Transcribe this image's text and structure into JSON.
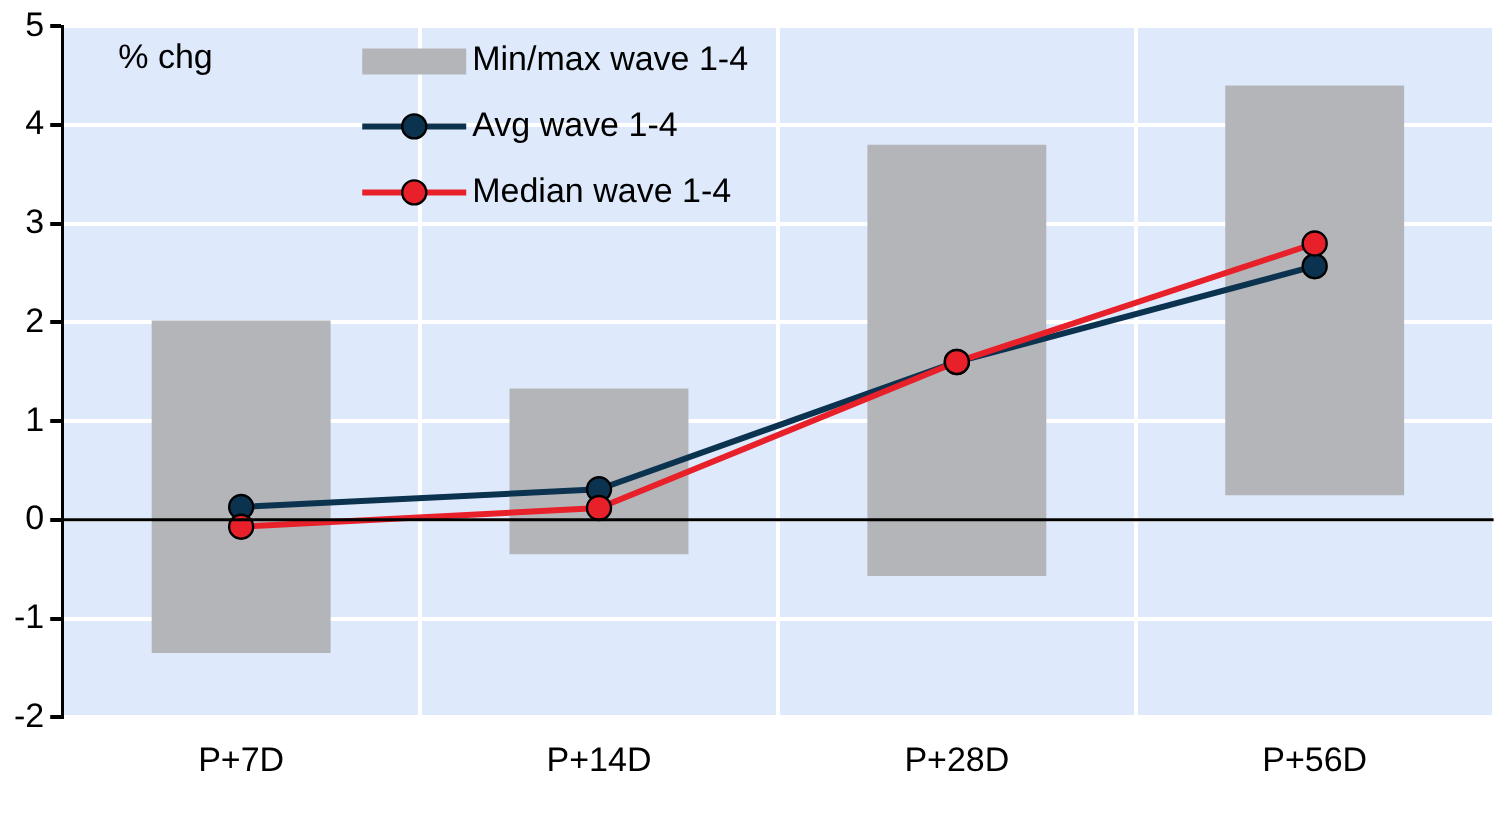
{
  "chart_data": {
    "type": "bar",
    "ylabel": "% chg",
    "categories": [
      "P+7D",
      "P+14D",
      "P+28D",
      "P+56D"
    ],
    "series": [
      {
        "name": "Min/max wave 1-4",
        "color": "#b4b5b9",
        "base": [
          -1.35,
          -0.35,
          -0.57,
          0.25
        ],
        "values": [
          3.37,
          1.68,
          4.37,
          4.15
        ]
      },
      {
        "name": "Avg wave 1-4",
        "type": "line",
        "color": "#0b3350",
        "values": [
          0.13,
          0.31,
          1.6,
          2.57
        ]
      },
      {
        "name": "Median wave 1-4",
        "type": "line",
        "color": "#e8202a",
        "values": [
          -0.07,
          0.12,
          1.6,
          2.8
        ]
      }
    ],
    "ylim": [
      -2,
      5
    ],
    "yticks": [
      -2,
      -1,
      0,
      1,
      2,
      3,
      4,
      5
    ],
    "grid": true,
    "legend": "top left",
    "marker": "circle",
    "line_style": "solid"
  }
}
